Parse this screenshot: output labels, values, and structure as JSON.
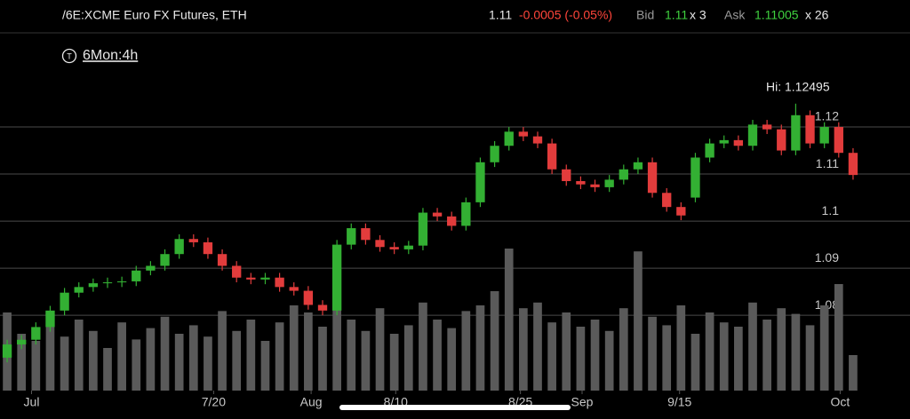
{
  "header": {
    "symbol": "/6E:XCME Euro FX Futures, ETH",
    "last": "1.11",
    "change": "-0.0005 (-0.05%)",
    "bid_label": "Bid",
    "bid": "1.11",
    "bid_size": "x 3",
    "ask_label": "Ask",
    "ask": "1.11005",
    "ask_size": "x 26",
    "timeframe": "6Mon:4h"
  },
  "chart_data": {
    "type": "candlestick",
    "annotation": "Hi: 1.12495",
    "up_color": "#33b033",
    "down_color": "#e23c3c",
    "volume_color": "#5a5a5a",
    "ylim": [
      1.064,
      1.13
    ],
    "yticks": [
      1.08,
      1.09,
      1.1,
      1.11,
      1.12
    ],
    "grid": true,
    "xlim": [
      0,
      60
    ],
    "xticks": [
      {
        "value": 1.7,
        "label": "Jul"
      },
      {
        "value": 14.4,
        "label": "7/20"
      },
      {
        "value": 21.2,
        "label": "Aug"
      },
      {
        "value": 27.1,
        "label": "8/10"
      },
      {
        "value": 35.8,
        "label": "8/25"
      },
      {
        "value": 40.1,
        "label": "Sep"
      },
      {
        "value": 46.9,
        "label": "9/15"
      },
      {
        "value": 58.1,
        "label": "Oct"
      }
    ],
    "open": [
      1.071,
      1.0738,
      1.0748,
      1.0775,
      1.081,
      1.0848,
      1.086,
      1.0868,
      1.087,
      1.0872,
      1.0895,
      1.0905,
      1.093,
      1.0962,
      1.0955,
      1.093,
      1.0905,
      1.088,
      1.0876,
      1.088,
      1.086,
      1.0852,
      1.0822,
      1.081,
      1.095,
      1.0985,
      1.096,
      1.0945,
      1.094,
      1.0948,
      1.1018,
      1.101,
      1.099,
      1.104,
      1.1125,
      1.116,
      1.119,
      1.118,
      1.1165,
      1.111,
      1.1085,
      1.1078,
      1.1072,
      1.1088,
      1.111,
      1.1125,
      1.106,
      1.103,
      1.105,
      1.1135,
      1.1165,
      1.1172,
      1.116,
      1.1205,
      1.1195,
      1.115,
      1.1225,
      1.1165,
      1.12,
      1.1145
    ],
    "high": [
      1.0748,
      1.0758,
      1.0785,
      1.082,
      1.0858,
      1.087,
      1.0878,
      1.088,
      1.0882,
      1.0905,
      1.0915,
      1.094,
      1.0972,
      1.0972,
      1.0965,
      1.094,
      1.0915,
      1.089,
      1.089,
      1.089,
      1.087,
      1.0862,
      1.0832,
      1.096,
      1.0995,
      1.0995,
      1.097,
      1.0955,
      1.0958,
      1.1028,
      1.1028,
      1.102,
      1.105,
      1.1135,
      1.117,
      1.12,
      1.12,
      1.119,
      1.1175,
      1.112,
      1.1095,
      1.1088,
      1.1098,
      1.112,
      1.1135,
      1.1135,
      1.107,
      1.104,
      1.1145,
      1.1175,
      1.1182,
      1.1182,
      1.1215,
      1.1215,
      1.1205,
      1.12495,
      1.1235,
      1.121,
      1.121,
      1.1155
    ],
    "low": [
      1.07,
      1.0728,
      1.0738,
      1.0765,
      1.08,
      1.0838,
      1.085,
      1.0858,
      1.086,
      1.0862,
      1.0885,
      1.0895,
      1.092,
      1.0945,
      1.092,
      1.0895,
      1.087,
      1.0866,
      1.0866,
      1.085,
      1.0842,
      1.0812,
      1.08,
      1.08,
      1.094,
      1.095,
      1.0935,
      1.093,
      1.093,
      1.0938,
      1.1,
      1.098,
      1.098,
      1.103,
      1.1115,
      1.115,
      1.117,
      1.1155,
      1.11,
      1.1075,
      1.1068,
      1.1062,
      1.1062,
      1.1078,
      1.11,
      1.105,
      1.102,
      1.1002,
      1.104,
      1.1125,
      1.1155,
      1.115,
      1.115,
      1.1185,
      1.114,
      1.114,
      1.1155,
      1.1155,
      1.1135,
      1.1088
    ],
    "close": [
      1.0738,
      1.0748,
      1.0775,
      1.081,
      1.0848,
      1.086,
      1.0868,
      1.087,
      1.0872,
      1.0895,
      1.0905,
      1.093,
      1.0962,
      1.0955,
      1.093,
      1.0905,
      1.088,
      1.0876,
      1.088,
      1.086,
      1.0852,
      1.0822,
      1.081,
      1.095,
      1.0985,
      1.096,
      1.0945,
      1.094,
      1.0948,
      1.1018,
      1.101,
      1.099,
      1.104,
      1.1125,
      1.116,
      1.119,
      1.118,
      1.1165,
      1.111,
      1.1085,
      1.1078,
      1.1072,
      1.1088,
      1.111,
      1.1125,
      1.106,
      1.103,
      1.1012,
      1.1135,
      1.1165,
      1.1172,
      1.116,
      1.1205,
      1.1195,
      1.115,
      1.1225,
      1.1165,
      1.12,
      1.1145,
      1.1098
    ],
    "volume": [
      55,
      40,
      35,
      45,
      38,
      50,
      42,
      30,
      48,
      36,
      44,
      52,
      40,
      46,
      38,
      56,
      42,
      50,
      35,
      48,
      60,
      55,
      45,
      82,
      50,
      42,
      58,
      40,
      46,
      62,
      50,
      44,
      56,
      60,
      70,
      100,
      58,
      62,
      48,
      55,
      45,
      50,
      42,
      58,
      98,
      52,
      46,
      60,
      40,
      55,
      48,
      45,
      62,
      50,
      58,
      54,
      46,
      60,
      75,
      25
    ]
  }
}
